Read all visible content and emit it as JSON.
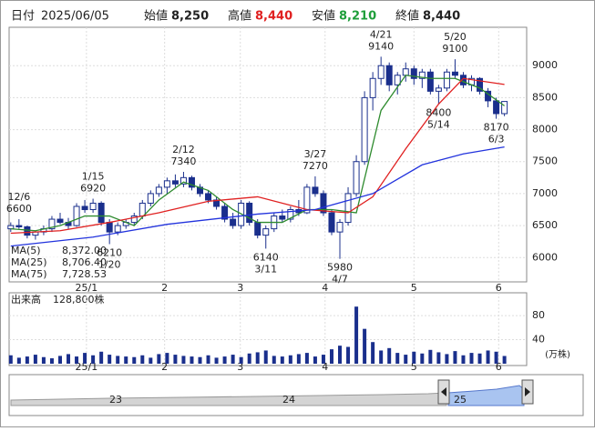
{
  "header": {
    "date_label": "日付",
    "date": "2025/06/05",
    "open_label": "始値",
    "open": "8,250",
    "high_label": "高値",
    "high": "8,440",
    "low_label": "安値",
    "low": "8,210",
    "close_label": "終値",
    "close": "8,440"
  },
  "chart_data": {
    "type": "candlestick",
    "xlim": [
      -0.2,
      62.7
    ],
    "ylim": [
      5620,
      9600
    ],
    "yticks": [
      6000,
      6500,
      7000,
      7500,
      8000,
      8500,
      9000
    ],
    "xticks": [
      {
        "value": 9.2,
        "label": "25/1"
      },
      {
        "value": 18.7,
        "label": "2"
      },
      {
        "value": 27.9,
        "label": "3"
      },
      {
        "value": 38.2,
        "label": "4"
      },
      {
        "value": 49,
        "label": "5"
      },
      {
        "value": 59.3,
        "label": "6"
      }
    ],
    "up_color": "#ffffff",
    "down_color": "#1a2f8c",
    "grid": true,
    "candles": [
      [
        6450,
        6550,
        6400,
        6500
      ],
      [
        6500,
        6600,
        6450,
        6480
      ],
      [
        6480,
        6500,
        6300,
        6350
      ],
      [
        6350,
        6420,
        6280,
        6400
      ],
      [
        6400,
        6500,
        6350,
        6450
      ],
      [
        6450,
        6650,
        6400,
        6600
      ],
      [
        6600,
        6700,
        6520,
        6550
      ],
      [
        6550,
        6620,
        6450,
        6500
      ],
      [
        6500,
        6850,
        6480,
        6800
      ],
      [
        6800,
        6900,
        6700,
        6750
      ],
      [
        6750,
        6920,
        6700,
        6850
      ],
      [
        6850,
        6880,
        6500,
        6550
      ],
      [
        6550,
        6600,
        6210,
        6400
      ],
      [
        6400,
        6550,
        6350,
        6500
      ],
      [
        6500,
        6600,
        6450,
        6550
      ],
      [
        6550,
        6700,
        6500,
        6650
      ],
      [
        6650,
        6900,
        6600,
        6850
      ],
      [
        6850,
        7050,
        6800,
        7000
      ],
      [
        7000,
        7150,
        6950,
        7100
      ],
      [
        7100,
        7250,
        7000,
        7200
      ],
      [
        7200,
        7300,
        7100,
        7150
      ],
      [
        7150,
        7340,
        7100,
        7250
      ],
      [
        7250,
        7280,
        7050,
        7100
      ],
      [
        7100,
        7150,
        6950,
        7000
      ],
      [
        7000,
        7050,
        6850,
        6900
      ],
      [
        6900,
        6950,
        6750,
        6800
      ],
      [
        6800,
        6850,
        6550,
        6600
      ],
      [
        6600,
        6700,
        6450,
        6500
      ],
      [
        6500,
        6900,
        6450,
        6850
      ],
      [
        6850,
        6880,
        6500,
        6550
      ],
      [
        6550,
        6600,
        6300,
        6350
      ],
      [
        6350,
        6500,
        6140,
        6450
      ],
      [
        6450,
        6700,
        6400,
        6650
      ],
      [
        6650,
        6750,
        6550,
        6600
      ],
      [
        6600,
        6800,
        6550,
        6750
      ],
      [
        6750,
        6900,
        6650,
        6700
      ],
      [
        6700,
        7150,
        6680,
        7100
      ],
      [
        7100,
        7270,
        6950,
        7000
      ],
      [
        7000,
        7050,
        6650,
        6700
      ],
      [
        6700,
        6750,
        6350,
        6400
      ],
      [
        6400,
        6600,
        5980,
        6550
      ],
      [
        6550,
        7100,
        6500,
        7000
      ],
      [
        7000,
        7600,
        6950,
        7500
      ],
      [
        7500,
        8600,
        7450,
        8500
      ],
      [
        8500,
        8900,
        8300,
        8800
      ],
      [
        8800,
        9140,
        8700,
        9000
      ],
      [
        9000,
        9050,
        8600,
        8700
      ],
      [
        8700,
        8900,
        8550,
        8850
      ],
      [
        8850,
        9050,
        8750,
        8950
      ],
      [
        8950,
        9000,
        8700,
        8800
      ],
      [
        8800,
        8950,
        8650,
        8900
      ],
      [
        8900,
        8950,
        8550,
        8600
      ],
      [
        8600,
        8700,
        8400,
        8650
      ],
      [
        8650,
        8950,
        8600,
        8900
      ],
      [
        8900,
        9100,
        8800,
        8850
      ],
      [
        8850,
        8900,
        8650,
        8700
      ],
      [
        8700,
        8850,
        8600,
        8800
      ],
      [
        8800,
        8820,
        8550,
        8600
      ],
      [
        8600,
        8650,
        8350,
        8450
      ],
      [
        8450,
        8500,
        8170,
        8250
      ],
      [
        8250,
        8440,
        8210,
        8440
      ]
    ],
    "series": [
      {
        "name": "MA(5)",
        "color": "#2e8b2e",
        "value_label": "8,372.00",
        "x": [
          0,
          3,
          6,
          9,
          12,
          15,
          18,
          21,
          24,
          27,
          30,
          33,
          36,
          39,
          42,
          45,
          48,
          51,
          54,
          57,
          60
        ],
        "values": [
          6450,
          6420,
          6500,
          6650,
          6650,
          6500,
          6900,
          7180,
          7050,
          6750,
          6550,
          6550,
          6750,
          6750,
          6700,
          8300,
          8850,
          8800,
          8800,
          8650,
          8372
        ]
      },
      {
        "name": "MA(25)",
        "color": "#e02020",
        "value_label": "8,706.40",
        "x": [
          0,
          6,
          12,
          18,
          24,
          30,
          36,
          41,
          44,
          48,
          52,
          55,
          60
        ],
        "values": [
          6380,
          6420,
          6550,
          6700,
          6880,
          6950,
          6750,
          6700,
          6950,
          7700,
          8400,
          8800,
          8706.4
        ]
      },
      {
        "name": "MA(75)",
        "color": "#2233dd",
        "value_label": "7,728.53",
        "x": [
          0,
          10,
          19,
          30,
          37,
          44,
          50,
          55,
          60
        ],
        "values": [
          6180,
          6320,
          6520,
          6680,
          6750,
          7000,
          7450,
          7620,
          7728.53
        ]
      }
    ],
    "annotations": [
      {
        "date": "12/6",
        "price": 6600
      },
      {
        "date": "1/15",
        "price": 6920
      },
      {
        "date": "1/20",
        "price": 6210
      },
      {
        "date": "2/12",
        "price": 7340
      },
      {
        "date": "3/11",
        "price": 6140
      },
      {
        "date": "3/27",
        "price": 7270
      },
      {
        "date": "4/7",
        "price": 5980
      },
      {
        "date": "4/21",
        "price": 9140
      },
      {
        "date": "5/14",
        "price": 8400
      },
      {
        "date": "5/20",
        "price": 9100
      },
      {
        "date": "6/3",
        "price": 8170
      }
    ],
    "volume": {
      "label": "出来高",
      "latest": "128,800株",
      "unit": "(万株)",
      "color": "#1a2f8c",
      "ylim": [
        0,
        118
      ],
      "yticks": [
        40,
        80
      ],
      "values": [
        14,
        10,
        12,
        15,
        11,
        9,
        13,
        16,
        12,
        18,
        14,
        20,
        15,
        13,
        12,
        11,
        14,
        10,
        16,
        18,
        15,
        13,
        12,
        11,
        14,
        10,
        12,
        15,
        11,
        17,
        19,
        22,
        13,
        12,
        14,
        16,
        18,
        12,
        15,
        24,
        30,
        28,
        95,
        58,
        36,
        22,
        26,
        18,
        15,
        20,
        17,
        23,
        19,
        16,
        21,
        14,
        18,
        17,
        22,
        20,
        12.88
      ]
    }
  },
  "navigator": {
    "years": [
      "23",
      "24",
      "25"
    ]
  }
}
